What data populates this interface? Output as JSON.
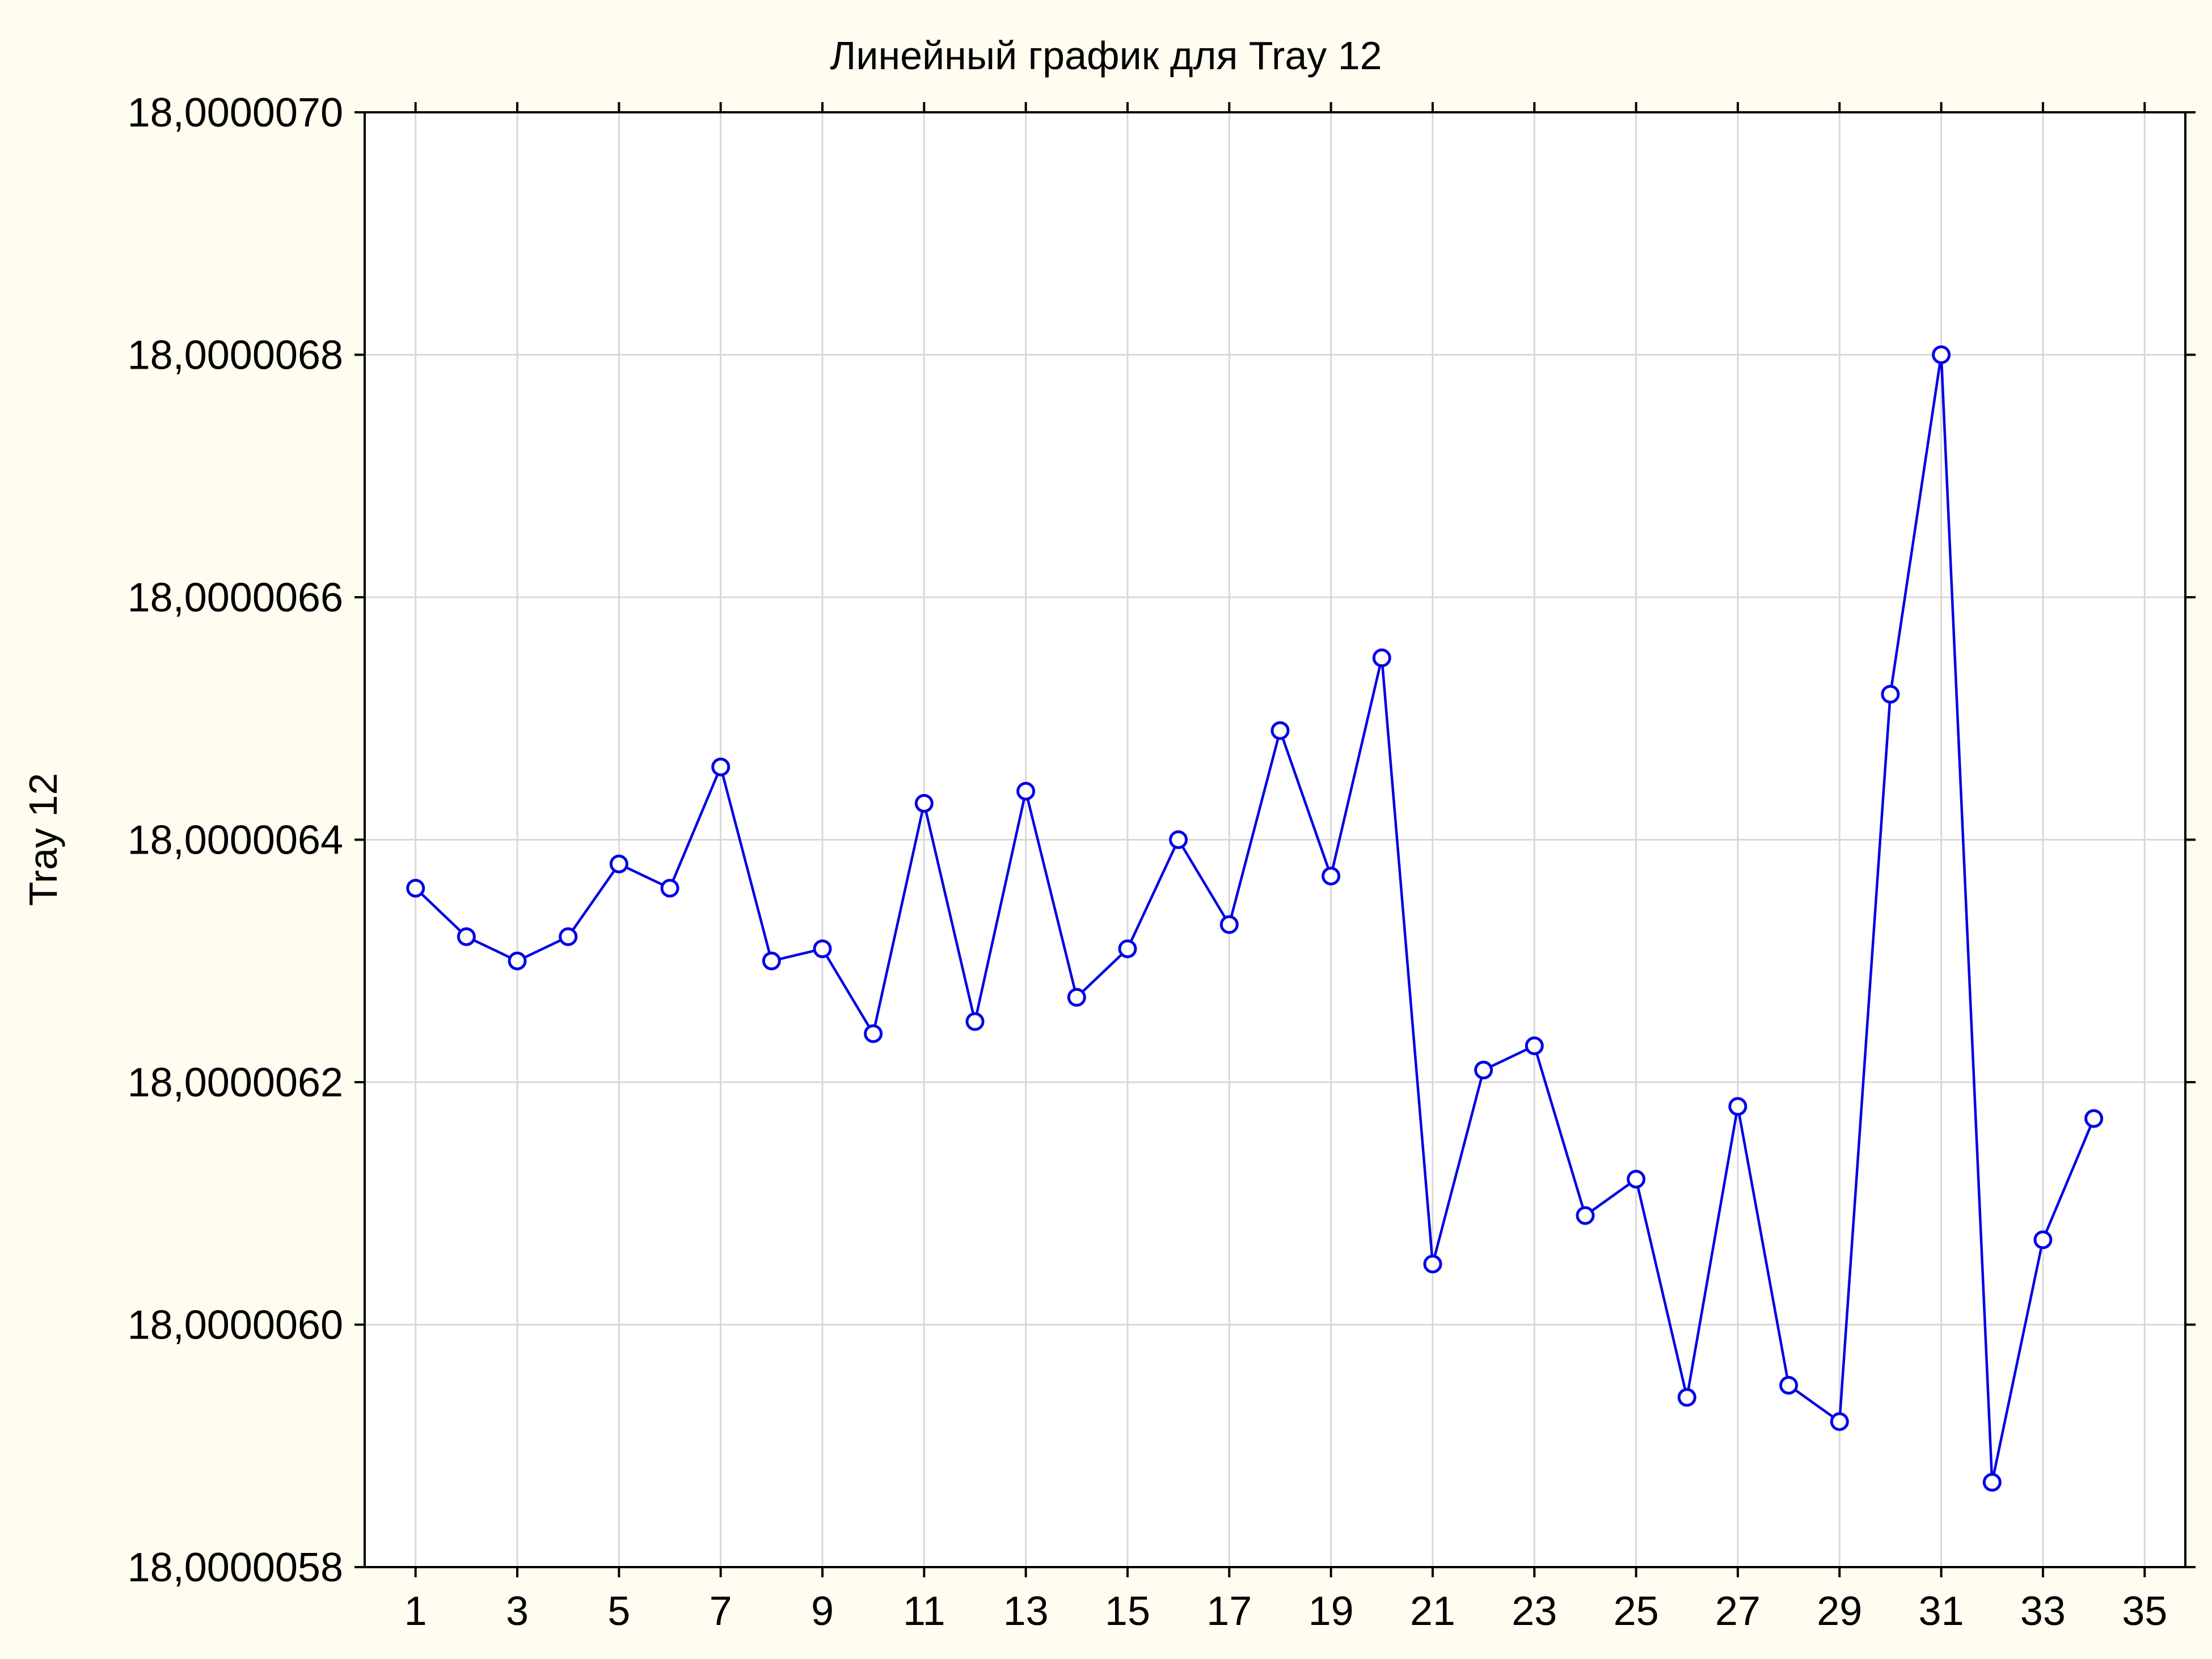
{
  "chart_data": {
    "type": "line",
    "title": "Линейный график для Tray 12",
    "ylabel": "Tray 12",
    "xlabel": "",
    "xlim": [
      0,
      35.8
    ],
    "ylim": [
      18.0000058,
      18.000007
    ],
    "x_ticks": [
      1,
      3,
      5,
      7,
      9,
      11,
      13,
      15,
      17,
      19,
      21,
      23,
      25,
      27,
      29,
      31,
      33,
      35
    ],
    "x_tick_labels": [
      "1",
      "3",
      "5",
      "7",
      "9",
      "11",
      "13",
      "15",
      "17",
      "19",
      "21",
      "23",
      "25",
      "27",
      "29",
      "31",
      "33",
      "35"
    ],
    "y_ticks": [
      18.0000058,
      18.000006,
      18.0000062,
      18.0000064,
      18.0000066,
      18.0000068,
      18.000007
    ],
    "y_tick_labels": [
      "18,0000058",
      "18,0000060",
      "18,0000062",
      "18,0000064",
      "18,0000066",
      "18,0000068",
      "18,0000070"
    ],
    "grid": true,
    "color": "#0000e6",
    "series": [
      {
        "x": [
          1,
          2,
          3,
          4,
          5,
          6,
          7,
          8,
          9,
          10,
          11,
          12,
          13,
          14,
          15,
          16,
          17,
          18,
          19,
          20,
          21,
          22,
          23,
          24,
          25,
          26,
          27,
          28,
          29,
          30,
          31,
          32,
          33,
          34
        ],
        "values": [
          18.00000636,
          18.00000632,
          18.0000063,
          18.00000632,
          18.00000638,
          18.00000636,
          18.00000646,
          18.0000063,
          18.00000631,
          18.00000624,
          18.00000643,
          18.00000625,
          18.00000644,
          18.00000627,
          18.00000631,
          18.0000064,
          18.00000633,
          18.00000649,
          18.00000637,
          18.00000655,
          18.00000605,
          18.00000621,
          18.00000623,
          18.00000609,
          18.00000612,
          18.00000594,
          18.00000618,
          18.00000595,
          18.00000592,
          18.00000652,
          18.0000068,
          18.00000587,
          18.00000607,
          18.00000617
        ]
      }
    ]
  }
}
